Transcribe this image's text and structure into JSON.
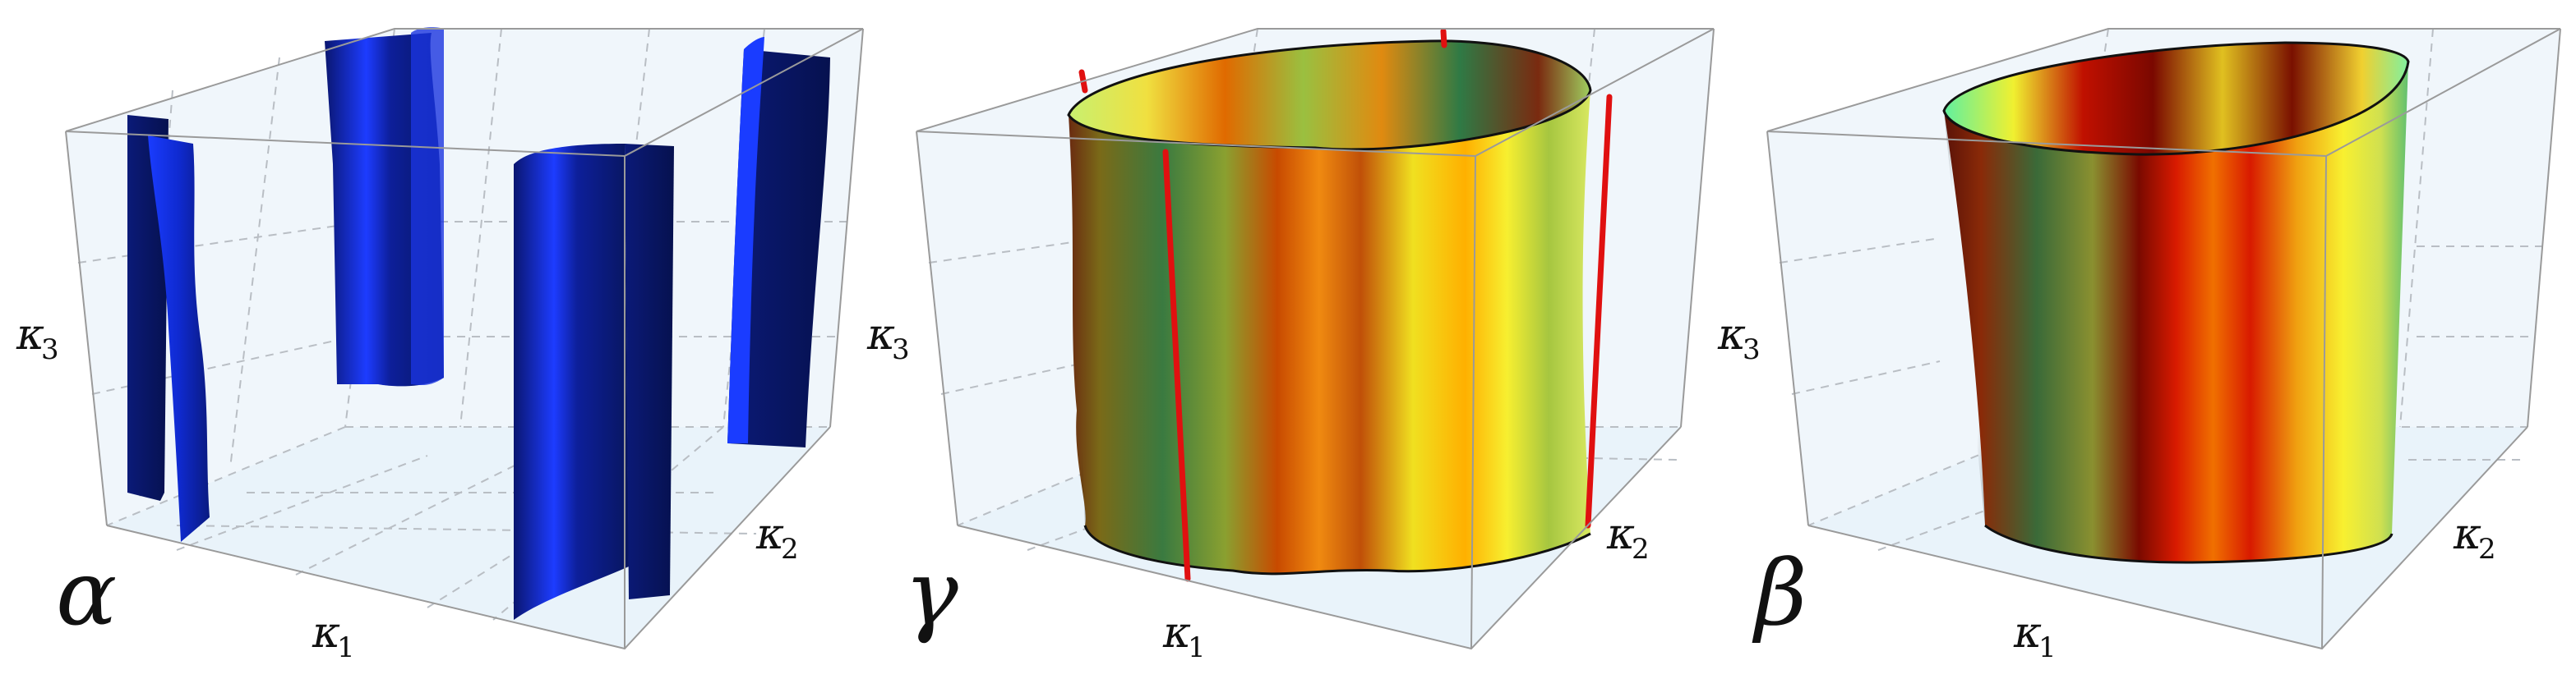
{
  "panels": [
    {
      "id": "alpha",
      "label": "α",
      "axes": {
        "k1": "κ",
        "k1_sub": "1",
        "k2": "κ",
        "k2_sub": "2",
        "k3": "κ",
        "k3_sub": "3"
      }
    },
    {
      "id": "gamma",
      "label": "γ",
      "axes": {
        "k1": "κ",
        "k1_sub": "1",
        "k2": "κ",
        "k2_sub": "2",
        "k3": "κ",
        "k3_sub": "3"
      }
    },
    {
      "id": "beta",
      "label": "β",
      "axes": {
        "k1": "κ",
        "k1_sub": "1",
        "k2": "κ",
        "k2_sub": "2",
        "k3": "κ",
        "k3_sub": "3"
      }
    }
  ],
  "colors": {
    "box_fill": "#eef5fb",
    "box_edge": "#9a9a9a",
    "grid_dash": "#b9bec4",
    "alpha_sheet_dark": "#0a1a7a",
    "alpha_sheet_light": "#1a3cff",
    "gamma_line": "#e01010",
    "heat_low": "#2e7d3e",
    "heat_mid": "#f5e020",
    "heat_high": "#c80000"
  }
}
